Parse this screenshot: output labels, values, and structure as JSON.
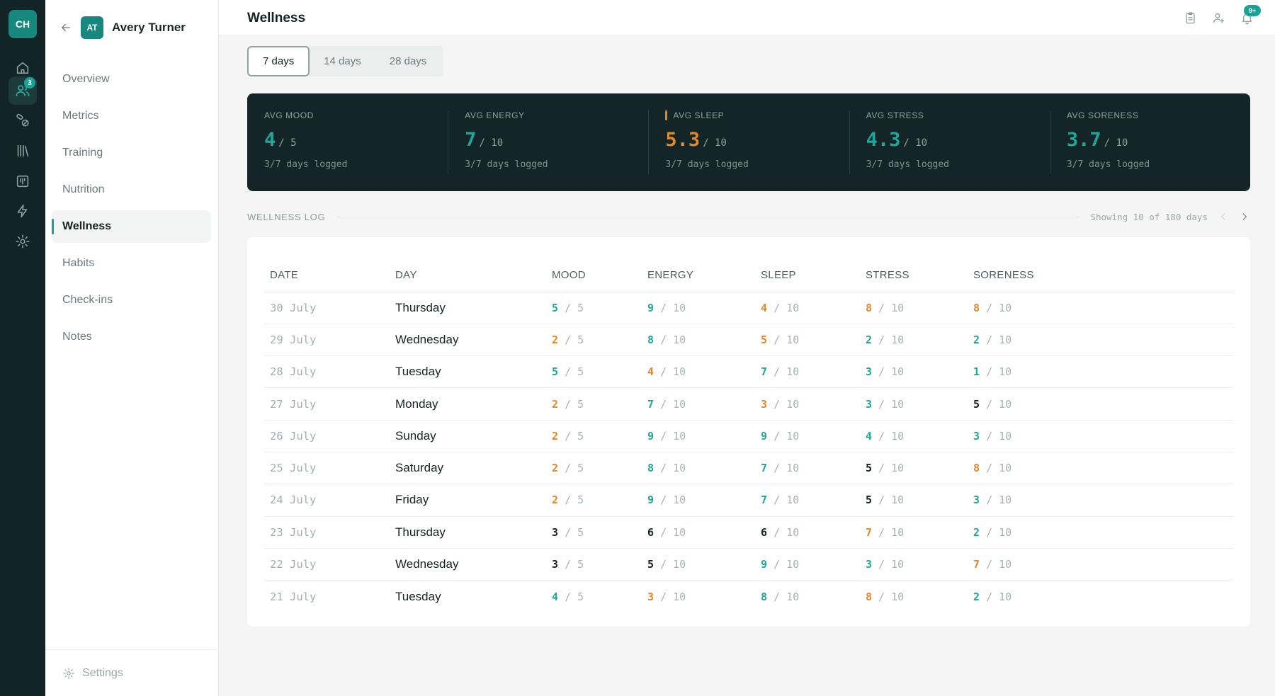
{
  "rail": {
    "logo": "CH",
    "items": [
      {
        "icon": "home-icon"
      },
      {
        "icon": "users-icon",
        "badge": "3",
        "active": true
      },
      {
        "icon": "pills-icon"
      },
      {
        "icon": "library-icon"
      },
      {
        "icon": "board-icon"
      },
      {
        "icon": "bolt-icon"
      },
      {
        "icon": "gear-icon"
      }
    ]
  },
  "client": {
    "initials": "AT",
    "name": "Avery Turner"
  },
  "nav": [
    {
      "label": "Overview"
    },
    {
      "label": "Metrics"
    },
    {
      "label": "Training"
    },
    {
      "label": "Nutrition"
    },
    {
      "label": "Wellness",
      "active": true
    },
    {
      "label": "Habits"
    },
    {
      "label": "Check-ins"
    },
    {
      "label": "Notes"
    }
  ],
  "sidebar_footer": {
    "label": "Settings"
  },
  "page": {
    "title": "Wellness",
    "notification_badge": "9+"
  },
  "range_tabs": [
    {
      "label": "7 days",
      "active": true
    },
    {
      "label": "14 days"
    },
    {
      "label": "28 days"
    }
  ],
  "stats": [
    {
      "label": "AVG MOOD",
      "value": "4",
      "denominator": "/ 5",
      "sub": "3/7 days logged",
      "color": "#1ea79a"
    },
    {
      "label": "AVG ENERGY",
      "value": "7",
      "denominator": "/ 10",
      "sub": "3/7 days logged",
      "color": "#1ea79a"
    },
    {
      "label": "AVG SLEEP",
      "value": "5.3",
      "denominator": "/ 10",
      "sub": "3/7 days logged",
      "color": "#e3892a",
      "flagged": true
    },
    {
      "label": "AVG STRESS",
      "value": "4.3",
      "denominator": "/ 10",
      "sub": "3/7 days logged",
      "color": "#1ea79a"
    },
    {
      "label": "AVG SORENESS",
      "value": "3.7",
      "denominator": "/ 10",
      "sub": "3/7 days logged",
      "color": "#1ea79a"
    }
  ],
  "log": {
    "title": "WELLNESS LOG",
    "showing": "Showing 10 of 180 days",
    "columns": [
      "DATE",
      "DAY",
      "MOOD",
      "ENERGY",
      "SLEEP",
      "STRESS",
      "SORENESS"
    ],
    "rows": [
      {
        "date": "30 July",
        "day": "Thursday",
        "mood": {
          "v": "5",
          "c": "teal"
        },
        "energy": {
          "v": "9",
          "c": "teal"
        },
        "sleep": {
          "v": "4",
          "c": "orange"
        },
        "stress": {
          "v": "8",
          "c": "orange"
        },
        "soreness": {
          "v": "8",
          "c": "orange"
        }
      },
      {
        "date": "29 July",
        "day": "Wednesday",
        "mood": {
          "v": "2",
          "c": "orange"
        },
        "energy": {
          "v": "8",
          "c": "teal"
        },
        "sleep": {
          "v": "5",
          "c": "orange"
        },
        "stress": {
          "v": "2",
          "c": "teal"
        },
        "soreness": {
          "v": "2",
          "c": "teal"
        }
      },
      {
        "date": "28 July",
        "day": "Tuesday",
        "mood": {
          "v": "5",
          "c": "teal"
        },
        "energy": {
          "v": "4",
          "c": "orange"
        },
        "sleep": {
          "v": "7",
          "c": "teal"
        },
        "stress": {
          "v": "3",
          "c": "teal"
        },
        "soreness": {
          "v": "1",
          "c": "teal"
        }
      },
      {
        "date": "27 July",
        "day": "Monday",
        "mood": {
          "v": "2",
          "c": "orange"
        },
        "energy": {
          "v": "7",
          "c": "teal"
        },
        "sleep": {
          "v": "3",
          "c": "orange"
        },
        "stress": {
          "v": "3",
          "c": "teal"
        },
        "soreness": {
          "v": "5",
          "c": "dark"
        }
      },
      {
        "date": "26 July",
        "day": "Sunday",
        "mood": {
          "v": "2",
          "c": "orange"
        },
        "energy": {
          "v": "9",
          "c": "teal"
        },
        "sleep": {
          "v": "9",
          "c": "teal"
        },
        "stress": {
          "v": "4",
          "c": "teal"
        },
        "soreness": {
          "v": "3",
          "c": "teal"
        }
      },
      {
        "date": "25 July",
        "day": "Saturday",
        "mood": {
          "v": "2",
          "c": "orange"
        },
        "energy": {
          "v": "8",
          "c": "teal"
        },
        "sleep": {
          "v": "7",
          "c": "teal"
        },
        "stress": {
          "v": "5",
          "c": "dark"
        },
        "soreness": {
          "v": "8",
          "c": "orange"
        }
      },
      {
        "date": "24 July",
        "day": "Friday",
        "mood": {
          "v": "2",
          "c": "orange"
        },
        "energy": {
          "v": "9",
          "c": "teal"
        },
        "sleep": {
          "v": "7",
          "c": "teal"
        },
        "stress": {
          "v": "5",
          "c": "dark"
        },
        "soreness": {
          "v": "3",
          "c": "teal"
        }
      },
      {
        "date": "23 July",
        "day": "Thursday",
        "mood": {
          "v": "3",
          "c": "dark"
        },
        "energy": {
          "v": "6",
          "c": "dark"
        },
        "sleep": {
          "v": "6",
          "c": "dark"
        },
        "stress": {
          "v": "7",
          "c": "orange"
        },
        "soreness": {
          "v": "2",
          "c": "teal"
        }
      },
      {
        "date": "22 July",
        "day": "Wednesday",
        "mood": {
          "v": "3",
          "c": "dark"
        },
        "energy": {
          "v": "5",
          "c": "dark"
        },
        "sleep": {
          "v": "9",
          "c": "teal"
        },
        "stress": {
          "v": "3",
          "c": "teal"
        },
        "soreness": {
          "v": "7",
          "c": "orange"
        }
      },
      {
        "date": "21 July",
        "day": "Tuesday",
        "mood": {
          "v": "4",
          "c": "teal"
        },
        "energy": {
          "v": "3",
          "c": "orange"
        },
        "sleep": {
          "v": "8",
          "c": "teal"
        },
        "stress": {
          "v": "8",
          "c": "orange"
        },
        "soreness": {
          "v": "2",
          "c": "teal"
        }
      }
    ],
    "mood_denominator": "/ 5",
    "scale_denominator": "/ 10"
  },
  "colors": {
    "accent": "#17a396",
    "warning": "#e3892a",
    "dark_panel": "#132526",
    "rail": "#122426"
  }
}
